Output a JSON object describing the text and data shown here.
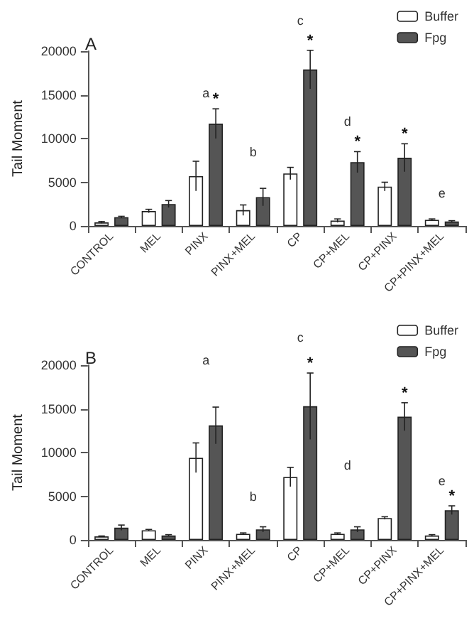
{
  "chart_data": [
    {
      "type": "bar",
      "title": "A",
      "ylabel": "Tail Moment",
      "categories": [
        "CONTROL",
        "MEL",
        "PINX",
        "PINX+MEL",
        "CP",
        "CP+MEL",
        "CP+PINX",
        "CP+PINX+MEL"
      ],
      "ylim": [
        0,
        20000
      ],
      "yticks": [
        0,
        5000,
        10000,
        15000,
        20000
      ],
      "grid": false,
      "legend": "top right",
      "series": [
        {
          "name": "Buffer",
          "color": "#ffffff",
          "values": [
            400,
            1700,
            5700,
            1800,
            6000,
            600,
            4500,
            700
          ],
          "errors": [
            100,
            200,
            1700,
            600,
            700,
            200,
            500,
            100
          ]
        },
        {
          "name": "Fpg",
          "color": "#555555",
          "values": [
            1000,
            2500,
            11700,
            3300,
            17900,
            7300,
            7800,
            500
          ],
          "errors": [
            100,
            400,
            1700,
            1000,
            2200,
            1200,
            1600,
            100
          ],
          "value_labels": [
            null,
            null,
            "*",
            null,
            "*",
            "*",
            "*",
            null
          ]
        }
      ],
      "annotations": [
        "a",
        "b",
        "c",
        "d",
        "e"
      ]
    },
    {
      "type": "bar",
      "title": "B",
      "ylabel": "Tail Moment",
      "categories": [
        "CONTROL",
        "MEL",
        "PINX",
        "PINX+MEL",
        "CP",
        "CP+MEL",
        "CP+PINX",
        "CP+PINX+MEL"
      ],
      "ylim": [
        0,
        20000
      ],
      "yticks": [
        0,
        5000,
        10000,
        15000,
        20000
      ],
      "grid": false,
      "legend": "top right",
      "series": [
        {
          "name": "Buffer",
          "color": "#ffffff",
          "values": [
            400,
            1100,
            9400,
            700,
            7200,
            700,
            2500,
            500
          ],
          "errors": [
            50,
            100,
            1700,
            100,
            1100,
            100,
            150,
            100
          ]
        },
        {
          "name": "Fpg",
          "color": "#555555",
          "values": [
            1400,
            500,
            13100,
            1200,
            15300,
            1200,
            14100,
            3400
          ],
          "errors": [
            300,
            100,
            2100,
            300,
            3800,
            300,
            1600,
            500
          ],
          "value_labels": [
            null,
            null,
            null,
            null,
            "*",
            null,
            "*",
            "*"
          ]
        }
      ],
      "annotations": [
        "a",
        "b",
        "c",
        "d",
        "e"
      ]
    }
  ]
}
